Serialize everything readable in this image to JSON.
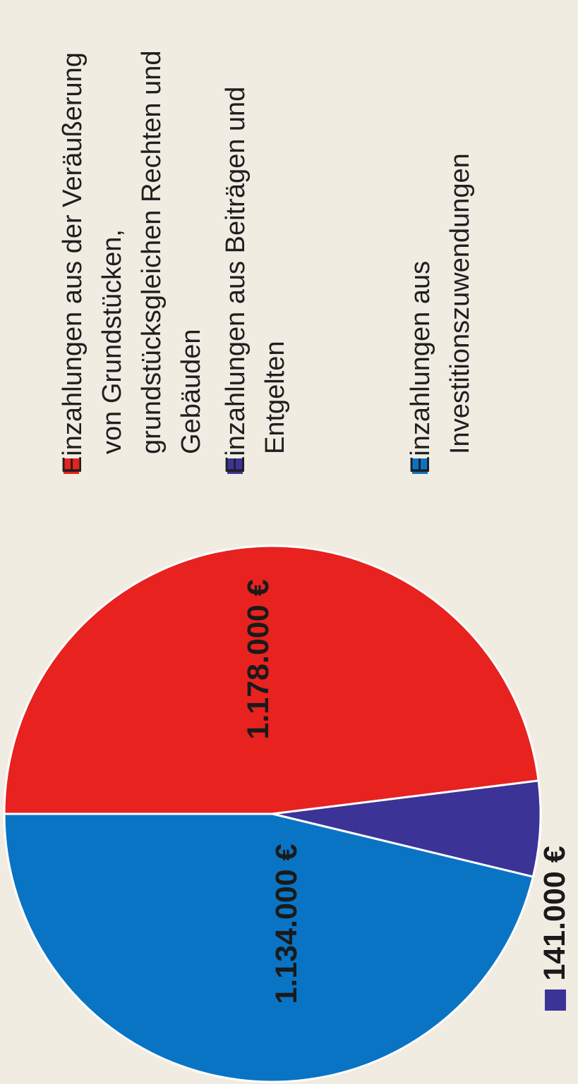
{
  "chart_data": {
    "type": "pie",
    "unit": "€",
    "slices": [
      {
        "label_lines": [
          "Einzahlungen aus der Veräußerung",
          "von Grundstücken,",
          "grundstücksgleichen Rechten und",
          "Gebäuden"
        ],
        "value": 1178000,
        "value_label": "1.178.000 €",
        "color": "#e8221f"
      },
      {
        "label_lines": [
          "Einzahlungen aus Beiträgen und",
          "Entgelten"
        ],
        "value": 141000,
        "value_label": "141.000 €",
        "color": "#3b3496"
      },
      {
        "label_lines": [
          "Einzahlungen aus",
          "Investitionszuwendungen"
        ],
        "value": 1134000,
        "value_label": "1.134.000 €",
        "color": "#0a74c4"
      }
    ],
    "legend_position": "right",
    "text_orientation": "rotated-90-ccw"
  }
}
